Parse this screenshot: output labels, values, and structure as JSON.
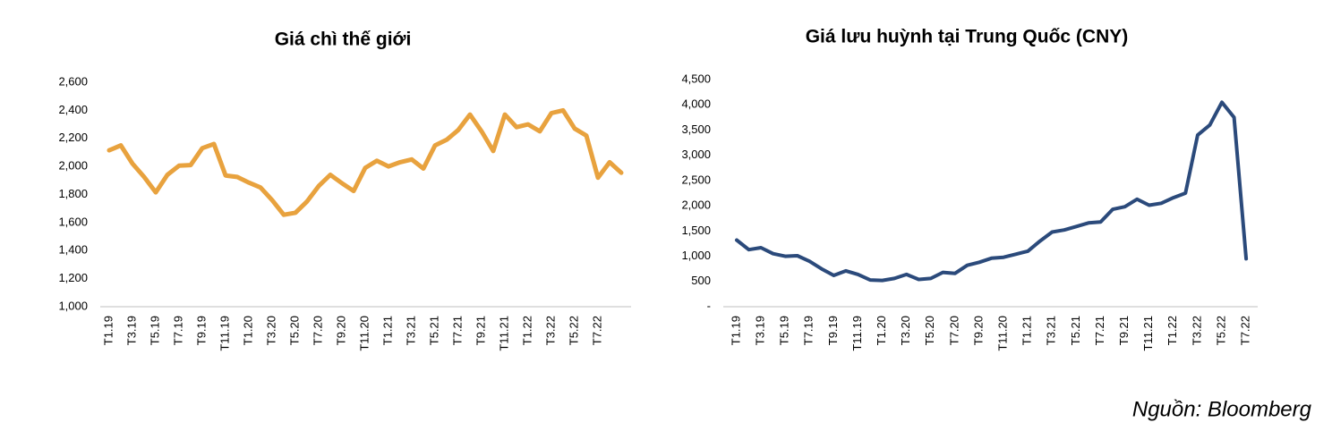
{
  "chart_data": [
    {
      "type": "line",
      "title": "Giá chì thế giới",
      "categories": [
        "T1.19",
        null,
        "T3.19",
        null,
        "T5.19",
        null,
        "T7.19",
        null,
        "T9.19",
        null,
        "T11.19",
        null,
        "T1.20",
        null,
        "T3.20",
        null,
        "T5.20",
        null,
        "T7.20",
        null,
        "T9.20",
        null,
        "T11.20",
        null,
        "T1.21",
        null,
        "T3.21",
        null,
        "T5.21",
        null,
        "T7.21",
        null,
        "T9.21",
        null,
        "T11.21",
        null,
        "T1.22",
        null,
        "T3.22",
        null,
        "T5.22",
        null,
        "T7.22",
        null,
        null
      ],
      "series": [
        {
          "color": "#e8a23e",
          "values": [
            2115,
            2150,
            2020,
            1925,
            1815,
            1940,
            2005,
            2010,
            2130,
            2160,
            1935,
            1925,
            1885,
            1850,
            1760,
            1655,
            1670,
            1750,
            1860,
            1940,
            1880,
            1825,
            1990,
            2040,
            2000,
            2030,
            2050,
            1985,
            2150,
            2190,
            2260,
            2370,
            2250,
            2110,
            2370,
            2280,
            2300,
            2250,
            2380,
            2400,
            2270,
            2220,
            1920,
            2030,
            1955
          ]
        }
      ],
      "ylim": [
        1000,
        2600
      ],
      "yticks": [
        {
          "value": 1000,
          "label": "1,000"
        },
        {
          "value": 1200,
          "label": "1,200"
        },
        {
          "value": 1400,
          "label": "1,400"
        },
        {
          "value": 1600,
          "label": "1,600"
        },
        {
          "value": 1800,
          "label": "1,800"
        },
        {
          "value": 2000,
          "label": "2,000"
        },
        {
          "value": 2200,
          "label": "2,200"
        },
        {
          "value": 2400,
          "label": "2,400"
        },
        {
          "value": 2600,
          "label": "2,600"
        }
      ]
    },
    {
      "type": "line",
      "title": "Giá lưu huỳnh tại Trung Quốc (CNY)",
      "categories": [
        "T1.19",
        null,
        "T3.19",
        null,
        "T5.19",
        null,
        "T7.19",
        null,
        "T9.19",
        null,
        "T11.19",
        null,
        "T1.20",
        null,
        "T3.20",
        null,
        "T5.20",
        null,
        "T7.20",
        null,
        "T9.20",
        null,
        "T11.20",
        null,
        "T1.21",
        null,
        "T3.21",
        null,
        "T5.21",
        null,
        "T7.21",
        null,
        "T9.21",
        null,
        "T11.21",
        null,
        "T1.22",
        null,
        "T3.22",
        null,
        "T5.22",
        null,
        "T7.22"
      ],
      "series": [
        {
          "color": "#2b4a7b",
          "values": [
            1320,
            1130,
            1170,
            1050,
            1000,
            1010,
            900,
            750,
            620,
            710,
            640,
            530,
            520,
            560,
            640,
            540,
            560,
            680,
            660,
            820,
            880,
            960,
            980,
            1040,
            1100,
            1300,
            1480,
            1520,
            1590,
            1660,
            1680,
            1930,
            1980,
            2130,
            2010,
            2050,
            2160,
            2250,
            3400,
            3600,
            4050,
            3750,
            950
          ]
        }
      ],
      "ylim": [
        0,
        4500
      ],
      "yticks": [
        {
          "value": 0,
          "label": "-"
        },
        500,
        {
          "value": 1000,
          "label": "1,000"
        },
        {
          "value": 1500,
          "label": "1,500"
        },
        {
          "value": 2000,
          "label": "2,000"
        },
        {
          "value": 2500,
          "label": "2,500"
        },
        {
          "value": 3000,
          "label": "3,000"
        },
        {
          "value": 3500,
          "label": "3,500"
        },
        {
          "value": 4000,
          "label": "4,000"
        },
        {
          "value": 4500,
          "label": "4,500"
        }
      ]
    }
  ],
  "source": "Nguồn: Bloomberg"
}
